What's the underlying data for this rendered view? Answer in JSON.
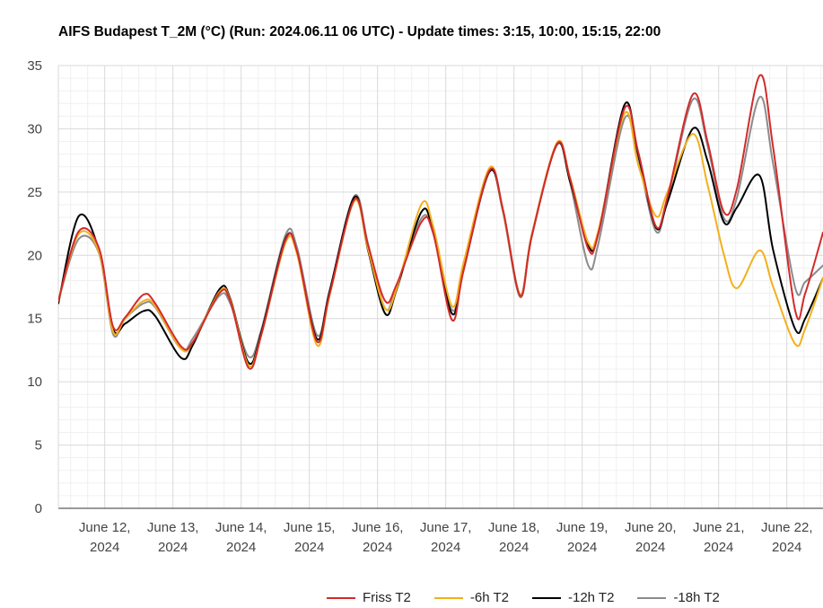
{
  "chart_data": {
    "type": "line",
    "title": "AIFS Budapest T_2M (°C) (Run: 2024.06.11 06 UTC) - Update times: 3:15, 10:00, 15:15, 22:00",
    "ylim": [
      0,
      35
    ],
    "y_ticks": [
      0,
      5,
      10,
      15,
      20,
      25,
      30,
      35
    ],
    "x_unit": "days since June 12, 2024 00:00",
    "xlim": [
      -0.68,
      10.53
    ],
    "x_ticks": [
      {
        "line1": "June 12,",
        "line2": "2024"
      },
      {
        "line1": "June 13,",
        "line2": "2024"
      },
      {
        "line1": "June 14,",
        "line2": "2024"
      },
      {
        "line1": "June 15,",
        "line2": "2024"
      },
      {
        "line1": "June 16,",
        "line2": "2024"
      },
      {
        "line1": "June 17,",
        "line2": "2024"
      },
      {
        "line1": "June 18,",
        "line2": "2024"
      },
      {
        "line1": "June 19,",
        "line2": "2024"
      },
      {
        "line1": "June 20,",
        "line2": "2024"
      },
      {
        "line1": "June 21,",
        "line2": "2024"
      },
      {
        "line1": "June 22,",
        "line2": "2024"
      }
    ],
    "grid": true,
    "legend_position": "bottom",
    "series": [
      {
        "name": "Friss T2",
        "color": "#d42a2a",
        "points": [
          [
            -0.68,
            16.4
          ],
          [
            -0.38,
            21.9
          ],
          [
            -0.08,
            20.5
          ],
          [
            0.12,
            14.4
          ],
          [
            0.3,
            15.1
          ],
          [
            0.57,
            16.9
          ],
          [
            0.74,
            16.2
          ],
          [
            1.12,
            12.8
          ],
          [
            1.3,
            13.2
          ],
          [
            1.68,
            17.0
          ],
          [
            1.84,
            16.4
          ],
          [
            2.11,
            11.1
          ],
          [
            2.3,
            13.8
          ],
          [
            2.65,
            21.2
          ],
          [
            2.82,
            20.3
          ],
          [
            3.11,
            13.2
          ],
          [
            3.3,
            17.0
          ],
          [
            3.66,
            24.4
          ],
          [
            3.86,
            20.8
          ],
          [
            4.11,
            16.4
          ],
          [
            4.28,
            17.7
          ],
          [
            4.64,
            22.6
          ],
          [
            4.81,
            21.9
          ],
          [
            5.09,
            14.9
          ],
          [
            5.26,
            18.8
          ],
          [
            5.64,
            26.7
          ],
          [
            5.84,
            23.6
          ],
          [
            6.09,
            16.8
          ],
          [
            6.26,
            21.5
          ],
          [
            6.63,
            28.8
          ],
          [
            6.82,
            26.1
          ],
          [
            7.09,
            20.5
          ],
          [
            7.24,
            21.8
          ],
          [
            7.62,
            31.6
          ],
          [
            7.82,
            28.2
          ],
          [
            8.08,
            22.3
          ],
          [
            8.25,
            24.6
          ],
          [
            8.62,
            32.7
          ],
          [
            8.84,
            28.9
          ],
          [
            9.08,
            23.4
          ],
          [
            9.27,
            25.3
          ],
          [
            9.6,
            34.2
          ],
          [
            9.8,
            28.5
          ],
          [
            10.12,
            15.7
          ],
          [
            10.27,
            17.0
          ],
          [
            10.53,
            21.8
          ]
        ]
      },
      {
        "name": "-6h T2",
        "color": "#f2b01c",
        "points": [
          [
            -0.68,
            16.4
          ],
          [
            -0.38,
            21.7
          ],
          [
            -0.08,
            20.2
          ],
          [
            0.12,
            14.0
          ],
          [
            0.3,
            15.0
          ],
          [
            0.57,
            16.4
          ],
          [
            0.74,
            16.0
          ],
          [
            1.12,
            12.6
          ],
          [
            1.3,
            13.2
          ],
          [
            1.68,
            17.1
          ],
          [
            1.84,
            16.5
          ],
          [
            2.11,
            11.3
          ],
          [
            2.3,
            13.8
          ],
          [
            2.65,
            21.0
          ],
          [
            2.82,
            20.1
          ],
          [
            3.11,
            12.9
          ],
          [
            3.3,
            16.9
          ],
          [
            3.66,
            24.3
          ],
          [
            3.86,
            20.5
          ],
          [
            4.11,
            15.8
          ],
          [
            4.28,
            17.4
          ],
          [
            4.64,
            24.0
          ],
          [
            4.81,
            22.4
          ],
          [
            5.09,
            16.0
          ],
          [
            5.26,
            19.4
          ],
          [
            5.64,
            26.9
          ],
          [
            5.84,
            23.5
          ],
          [
            6.09,
            16.9
          ],
          [
            6.26,
            21.6
          ],
          [
            6.63,
            28.9
          ],
          [
            6.82,
            26.2
          ],
          [
            7.09,
            21.0
          ],
          [
            7.24,
            22.0
          ],
          [
            7.62,
            31.2
          ],
          [
            7.82,
            27.2
          ],
          [
            8.08,
            23.1
          ],
          [
            8.25,
            25.0
          ],
          [
            8.62,
            29.6
          ],
          [
            8.84,
            25.5
          ],
          [
            9.08,
            20.0
          ],
          [
            9.27,
            17.4
          ],
          [
            9.6,
            20.4
          ],
          [
            9.8,
            17.5
          ],
          [
            10.12,
            13.0
          ],
          [
            10.27,
            14.2
          ],
          [
            10.53,
            18.2
          ]
        ]
      },
      {
        "name": "-12h T2",
        "color": "#000000",
        "points": [
          [
            -0.68,
            16.2
          ],
          [
            -0.38,
            23.1
          ],
          [
            -0.08,
            20.3
          ],
          [
            0.12,
            14.2
          ],
          [
            0.3,
            14.6
          ],
          [
            0.57,
            15.6
          ],
          [
            0.74,
            15.2
          ],
          [
            1.12,
            11.9
          ],
          [
            1.3,
            13.0
          ],
          [
            1.68,
            17.3
          ],
          [
            1.84,
            16.6
          ],
          [
            2.11,
            11.5
          ],
          [
            2.3,
            14.0
          ],
          [
            2.65,
            21.3
          ],
          [
            2.82,
            20.2
          ],
          [
            3.11,
            13.4
          ],
          [
            3.3,
            17.2
          ],
          [
            3.66,
            24.6
          ],
          [
            3.86,
            20.4
          ],
          [
            4.11,
            15.4
          ],
          [
            4.28,
            17.3
          ],
          [
            4.64,
            23.4
          ],
          [
            4.81,
            22.0
          ],
          [
            5.09,
            15.4
          ],
          [
            5.26,
            18.9
          ],
          [
            5.64,
            26.6
          ],
          [
            5.84,
            23.5
          ],
          [
            6.09,
            16.9
          ],
          [
            6.26,
            21.6
          ],
          [
            6.63,
            28.8
          ],
          [
            6.82,
            25.9
          ],
          [
            7.09,
            20.8
          ],
          [
            7.24,
            21.8
          ],
          [
            7.62,
            31.9
          ],
          [
            7.82,
            28.0
          ],
          [
            8.08,
            22.2
          ],
          [
            8.25,
            24.2
          ],
          [
            8.62,
            30.0
          ],
          [
            8.84,
            27.4
          ],
          [
            9.08,
            22.6
          ],
          [
            9.27,
            23.8
          ],
          [
            9.6,
            26.3
          ],
          [
            9.8,
            20.4
          ],
          [
            10.12,
            14.2
          ],
          [
            10.27,
            15.0
          ],
          [
            10.53,
            18.2
          ]
        ]
      },
      {
        "name": "-18h T2",
        "color": "#8c8c8c",
        "points": [
          [
            -0.68,
            16.4
          ],
          [
            -0.38,
            21.3
          ],
          [
            -0.08,
            20.1
          ],
          [
            0.12,
            13.8
          ],
          [
            0.3,
            15.0
          ],
          [
            0.57,
            16.2
          ],
          [
            0.74,
            15.9
          ],
          [
            1.12,
            12.6
          ],
          [
            1.3,
            13.5
          ],
          [
            1.68,
            16.8
          ],
          [
            1.84,
            16.2
          ],
          [
            2.11,
            12.0
          ],
          [
            2.3,
            14.2
          ],
          [
            2.65,
            21.6
          ],
          [
            2.82,
            20.6
          ],
          [
            3.11,
            13.7
          ],
          [
            3.3,
            17.3
          ],
          [
            3.66,
            24.7
          ],
          [
            3.86,
            20.9
          ],
          [
            4.11,
            15.8
          ],
          [
            4.28,
            17.6
          ],
          [
            4.64,
            22.9
          ],
          [
            4.81,
            21.8
          ],
          [
            5.09,
            15.7
          ],
          [
            5.26,
            18.8
          ],
          [
            5.64,
            26.7
          ],
          [
            5.84,
            23.4
          ],
          [
            6.09,
            16.7
          ],
          [
            6.26,
            21.5
          ],
          [
            6.63,
            28.7
          ],
          [
            6.82,
            25.8
          ],
          [
            7.09,
            19.2
          ],
          [
            7.24,
            21.0
          ],
          [
            7.62,
            30.8
          ],
          [
            7.82,
            27.6
          ],
          [
            8.08,
            21.9
          ],
          [
            8.25,
            24.4
          ],
          [
            8.62,
            32.3
          ],
          [
            8.84,
            28.6
          ],
          [
            9.08,
            22.9
          ],
          [
            9.27,
            24.6
          ],
          [
            9.6,
            32.5
          ],
          [
            9.8,
            27.2
          ],
          [
            10.12,
            17.5
          ],
          [
            10.27,
            17.9
          ],
          [
            10.53,
            19.2
          ]
        ]
      }
    ]
  }
}
